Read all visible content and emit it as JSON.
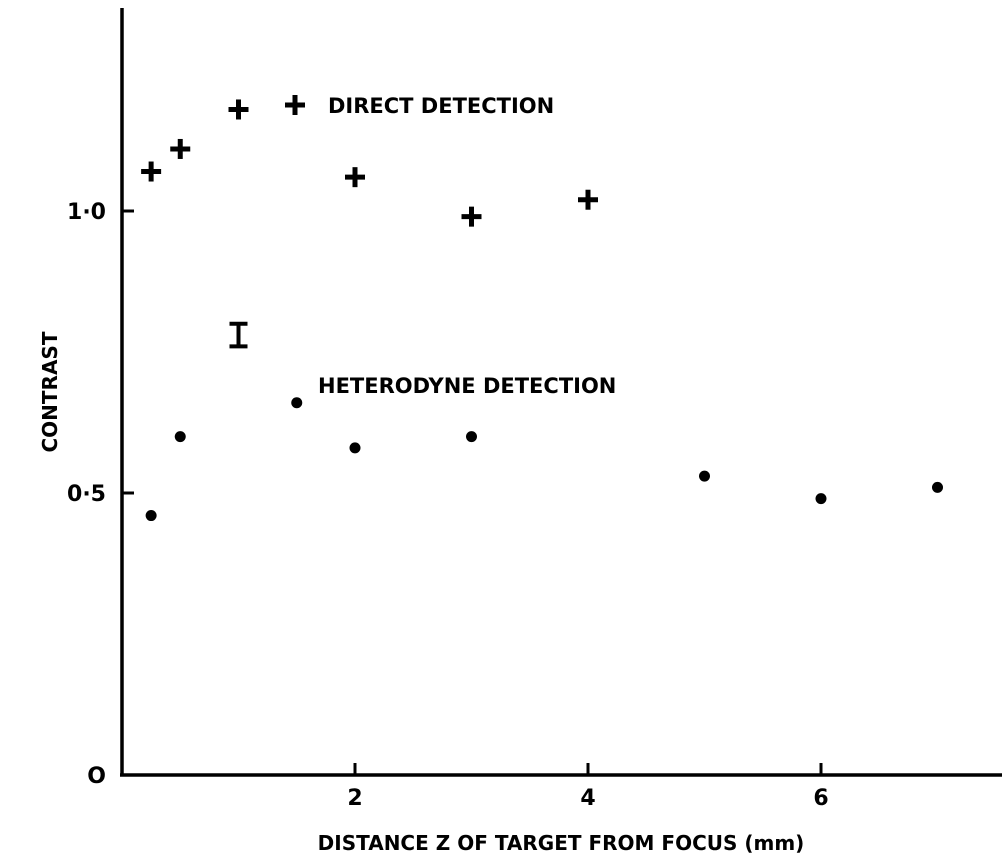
{
  "chart_data": {
    "type": "scatter",
    "xlabel": "DISTANCE Z OF TARGET FROM FOCUS (mm)",
    "ylabel": "CONTRAST",
    "xlim": [
      0,
      7.5
    ],
    "ylim": [
      0,
      1.3
    ],
    "x_ticks": [
      {
        "value": 2,
        "label": "2"
      },
      {
        "value": 4,
        "label": "4"
      },
      {
        "value": 6,
        "label": "6"
      }
    ],
    "y_ticks": [
      {
        "value": 0,
        "label": "O"
      },
      {
        "value": 0.5,
        "label": "0·5"
      },
      {
        "value": 1.0,
        "label": "1·0"
      }
    ],
    "grid": false,
    "series": [
      {
        "name": "DIRECT DETECTION",
        "marker": "plus",
        "points": [
          {
            "x": 0.25,
            "y": 1.07
          },
          {
            "x": 0.5,
            "y": 1.11
          },
          {
            "x": 1.0,
            "y": 1.18
          },
          {
            "x": 2.0,
            "y": 1.06
          },
          {
            "x": 3.0,
            "y": 0.99
          },
          {
            "x": 4.0,
            "y": 1.02
          }
        ]
      },
      {
        "name": "HETERODYNE DETECTION",
        "marker": "dot",
        "points": [
          {
            "x": 0.25,
            "y": 0.46
          },
          {
            "x": 0.5,
            "y": 0.6
          },
          {
            "x": 1.5,
            "y": 0.66
          },
          {
            "x": 2.0,
            "y": 0.58
          },
          {
            "x": 3.0,
            "y": 0.6
          },
          {
            "x": 5.0,
            "y": 0.53
          },
          {
            "x": 6.0,
            "y": 0.49
          },
          {
            "x": 7.0,
            "y": 0.51
          }
        ]
      }
    ],
    "error_bar": {
      "x": 1.0,
      "y_low": 0.76,
      "y_high": 0.8
    }
  }
}
